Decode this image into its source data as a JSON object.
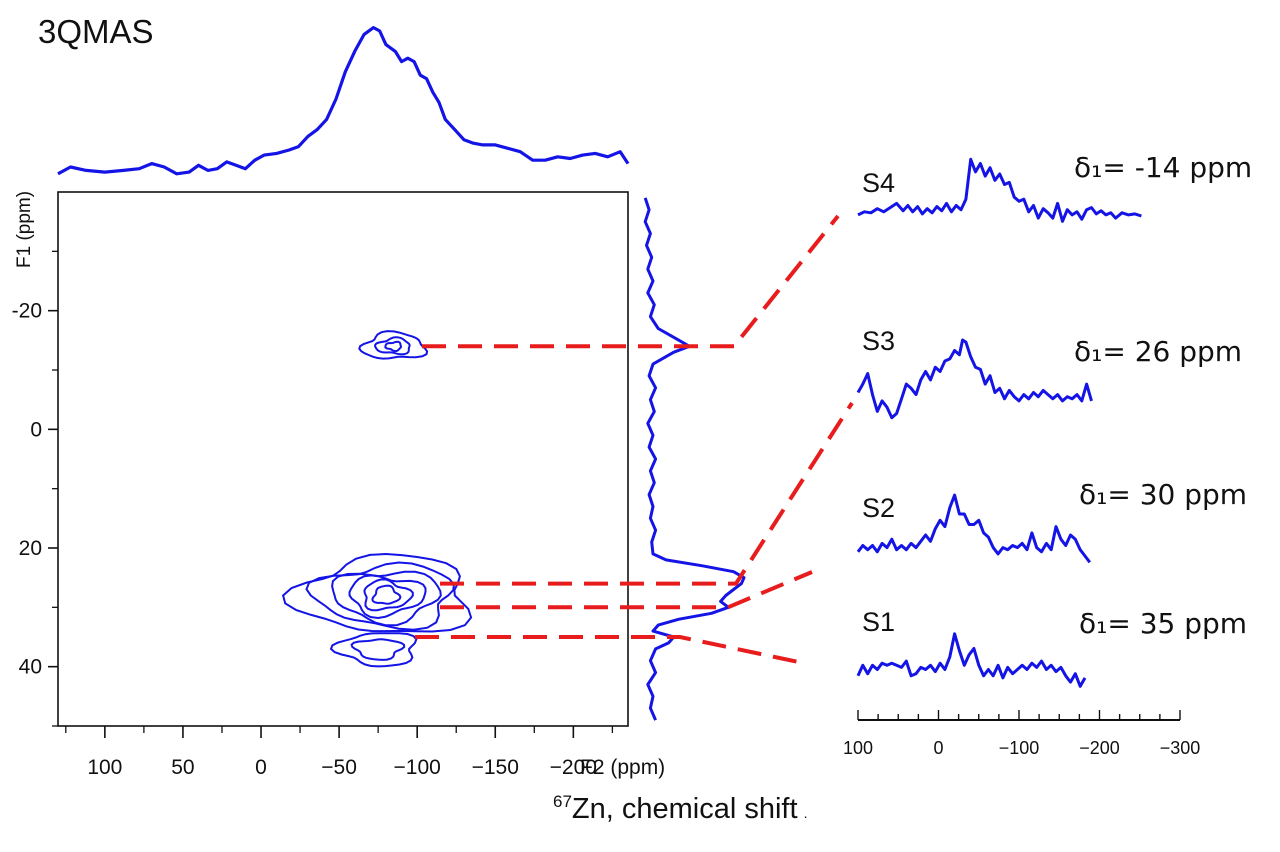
{
  "title": "3QMAS",
  "chart_data": {
    "type": "contour",
    "xlabel": "F2 (ppm)",
    "ylabel": "F1 (ppm)",
    "xlim": [
      130,
      -235
    ],
    "ylim": [
      -40,
      50
    ],
    "x_ticks": [
      100,
      50,
      0,
      -50,
      -100,
      -150,
      -200
    ],
    "x_tick_labels": [
      "100",
      "50",
      "0",
      "−50",
      "−100",
      "−150",
      "−200"
    ],
    "y_ticks": [
      -20,
      0,
      20,
      40
    ],
    "y_tick_labels": [
      "-20",
      "0",
      "20",
      "40"
    ],
    "footer_label_sup": "67",
    "footer_label_main": "Zn, chemical shift",
    "footer_mark": ".",
    "contours": [
      {
        "name": "site-A",
        "cx": -85,
        "cy": -14,
        "levels": [
          [
            20,
            2.2
          ],
          [
            11,
            1.3
          ],
          [
            5,
            0.7
          ]
        ]
      },
      {
        "name": "site-B",
        "cx": -80,
        "cy": 28,
        "levels": [
          [
            55,
            6.5
          ],
          [
            44,
            5.2
          ],
          [
            34,
            4.2
          ],
          [
            24,
            3.2
          ],
          [
            15,
            2.4
          ],
          [
            8,
            1.5
          ]
        ]
      },
      {
        "name": "site-C",
        "cx": -75,
        "cy": 37,
        "levels": [
          [
            25,
            2.8
          ],
          [
            15,
            1.7
          ]
        ]
      }
    ],
    "top_projection": [
      [
        130,
        -14
      ],
      [
        122,
        -10
      ],
      [
        112,
        -12
      ],
      [
        100,
        -13
      ],
      [
        88,
        -12
      ],
      [
        78,
        -11
      ],
      [
        70,
        -8
      ],
      [
        62,
        -10
      ],
      [
        54,
        -14
      ],
      [
        46,
        -13
      ],
      [
        40,
        -9
      ],
      [
        34,
        -12
      ],
      [
        28,
        -11
      ],
      [
        22,
        -7
      ],
      [
        16,
        -9
      ],
      [
        10,
        -11
      ],
      [
        4,
        -6
      ],
      [
        -2,
        -3
      ],
      [
        -10,
        -2
      ],
      [
        -18,
        0
      ],
      [
        -24,
        2
      ],
      [
        -30,
        8
      ],
      [
        -36,
        12
      ],
      [
        -42,
        18
      ],
      [
        -48,
        30
      ],
      [
        -54,
        46
      ],
      [
        -60,
        58
      ],
      [
        -66,
        68
      ],
      [
        -72,
        72
      ],
      [
        -76,
        70
      ],
      [
        -80,
        62
      ],
      [
        -86,
        58
      ],
      [
        -90,
        52
      ],
      [
        -94,
        54
      ],
      [
        -98,
        52
      ],
      [
        -102,
        44
      ],
      [
        -106,
        42
      ],
      [
        -110,
        34
      ],
      [
        -114,
        28
      ],
      [
        -118,
        18
      ],
      [
        -124,
        12
      ],
      [
        -130,
        6
      ],
      [
        -136,
        4
      ],
      [
        -142,
        3
      ],
      [
        -150,
        3
      ],
      [
        -158,
        1
      ],
      [
        -166,
        -1
      ],
      [
        -174,
        -6
      ],
      [
        -182,
        -6
      ],
      [
        -190,
        -4
      ],
      [
        -198,
        -5
      ],
      [
        -206,
        -3
      ],
      [
        -214,
        -2
      ],
      [
        -222,
        -4
      ],
      [
        -230,
        -1
      ],
      [
        -235,
        -8
      ]
    ],
    "side_projection": [
      [
        -39,
        4
      ],
      [
        -37,
        7
      ],
      [
        -35,
        4
      ],
      [
        -33,
        8
      ],
      [
        -31,
        5
      ],
      [
        -29,
        9
      ],
      [
        -27,
        6
      ],
      [
        -25,
        10
      ],
      [
        -23,
        6
      ],
      [
        -21,
        11
      ],
      [
        -19,
        8
      ],
      [
        -17,
        14
      ],
      [
        -15,
        30
      ],
      [
        -14,
        38
      ],
      [
        -13,
        26
      ],
      [
        -11,
        10
      ],
      [
        -9,
        7
      ],
      [
        -7,
        12
      ],
      [
        -5,
        8
      ],
      [
        -3,
        11
      ],
      [
        -1,
        6
      ],
      [
        1,
        10
      ],
      [
        3,
        7
      ],
      [
        5,
        12
      ],
      [
        7,
        8
      ],
      [
        9,
        11
      ],
      [
        11,
        7
      ],
      [
        13,
        10
      ],
      [
        15,
        8
      ],
      [
        17,
        12
      ],
      [
        19,
        9
      ],
      [
        21,
        10
      ],
      [
        22,
        20
      ],
      [
        23,
        48
      ],
      [
        24,
        72
      ],
      [
        25,
        80
      ],
      [
        26,
        78
      ],
      [
        27,
        72
      ],
      [
        28,
        66
      ],
      [
        29,
        62
      ],
      [
        30,
        68
      ],
      [
        31,
        55
      ],
      [
        32,
        30
      ],
      [
        33,
        14
      ],
      [
        34,
        10
      ],
      [
        35,
        26
      ],
      [
        36,
        22
      ],
      [
        37,
        12
      ],
      [
        39,
        8
      ],
      [
        41,
        12
      ],
      [
        43,
        6
      ],
      [
        45,
        10
      ],
      [
        47,
        8
      ],
      [
        49,
        12
      ]
    ],
    "slices": [
      {
        "label": "S4",
        "shift": "δ₁= -14 ppm",
        "f1": -14,
        "data": [
          [
            100,
            1
          ],
          [
            92,
            4
          ],
          [
            84,
            3
          ],
          [
            76,
            7
          ],
          [
            68,
            4
          ],
          [
            60,
            8
          ],
          [
            52,
            12
          ],
          [
            44,
            5
          ],
          [
            38,
            10
          ],
          [
            32,
            4
          ],
          [
            26,
            9
          ],
          [
            20,
            2
          ],
          [
            14,
            7
          ],
          [
            8,
            3
          ],
          [
            2,
            9
          ],
          [
            -4,
            5
          ],
          [
            -10,
            12
          ],
          [
            -16,
            4
          ],
          [
            -22,
            10
          ],
          [
            -28,
            6
          ],
          [
            -34,
            16
          ],
          [
            -40,
            54
          ],
          [
            -46,
            42
          ],
          [
            -52,
            50
          ],
          [
            -58,
            38
          ],
          [
            -64,
            46
          ],
          [
            -70,
            34
          ],
          [
            -76,
            40
          ],
          [
            -82,
            30
          ],
          [
            -88,
            32
          ],
          [
            -94,
            18
          ],
          [
            -100,
            14
          ],
          [
            -106,
            16
          ],
          [
            -112,
            4
          ],
          [
            -118,
            10
          ],
          [
            -124,
            -2
          ],
          [
            -130,
            7
          ],
          [
            -136,
            3
          ],
          [
            -142,
            -2
          ],
          [
            -148,
            12
          ],
          [
            -154,
            -5
          ],
          [
            -160,
            6
          ],
          [
            -166,
            1
          ],
          [
            -172,
            4
          ],
          [
            -178,
            -3
          ],
          [
            -184,
            6
          ],
          [
            -190,
            8
          ],
          [
            -196,
            2
          ],
          [
            -202,
            5
          ],
          [
            -208,
            1
          ],
          [
            -214,
            3
          ],
          [
            -220,
            -2
          ],
          [
            -228,
            3
          ],
          [
            -236,
            1
          ],
          [
            -244,
            2
          ],
          [
            -252,
            0
          ]
        ]
      },
      {
        "label": "S3",
        "shift": "δ₁= 26 ppm",
        "f1": 26,
        "data": [
          [
            100,
            10
          ],
          [
            94,
            18
          ],
          [
            88,
            28
          ],
          [
            82,
            8
          ],
          [
            76,
            -8
          ],
          [
            70,
            2
          ],
          [
            64,
            -4
          ],
          [
            58,
            -14
          ],
          [
            52,
            -10
          ],
          [
            46,
            4
          ],
          [
            40,
            18
          ],
          [
            34,
            14
          ],
          [
            28,
            8
          ],
          [
            22,
            22
          ],
          [
            16,
            30
          ],
          [
            10,
            22
          ],
          [
            4,
            34
          ],
          [
            -2,
            30
          ],
          [
            -8,
            40
          ],
          [
            -14,
            42
          ],
          [
            -20,
            50
          ],
          [
            -26,
            46
          ],
          [
            -30,
            60
          ],
          [
            -34,
            58
          ],
          [
            -40,
            44
          ],
          [
            -46,
            34
          ],
          [
            -52,
            32
          ],
          [
            -58,
            18
          ],
          [
            -64,
            26
          ],
          [
            -70,
            10
          ],
          [
            -76,
            14
          ],
          [
            -82,
            4
          ],
          [
            -88,
            12
          ],
          [
            -94,
            6
          ],
          [
            -100,
            2
          ],
          [
            -106,
            8
          ],
          [
            -112,
            4
          ],
          [
            -118,
            10
          ],
          [
            -124,
            6
          ],
          [
            -130,
            12
          ],
          [
            -136,
            8
          ],
          [
            -142,
            4
          ],
          [
            -148,
            8
          ],
          [
            -154,
            2
          ],
          [
            -160,
            6
          ],
          [
            -166,
            4
          ],
          [
            -172,
            8
          ],
          [
            -178,
            2
          ],
          [
            -184,
            18
          ],
          [
            -190,
            2
          ]
        ]
      },
      {
        "label": "S2",
        "shift": "δ₁= 30 ppm",
        "f1": 30,
        "data": [
          [
            100,
            4
          ],
          [
            94,
            10
          ],
          [
            88,
            6
          ],
          [
            82,
            10
          ],
          [
            76,
            4
          ],
          [
            70,
            12
          ],
          [
            64,
            8
          ],
          [
            58,
            16
          ],
          [
            52,
            6
          ],
          [
            46,
            10
          ],
          [
            40,
            6
          ],
          [
            34,
            12
          ],
          [
            28,
            8
          ],
          [
            22,
            14
          ],
          [
            16,
            20
          ],
          [
            10,
            14
          ],
          [
            4,
            26
          ],
          [
            -2,
            34
          ],
          [
            -8,
            28
          ],
          [
            -14,
            46
          ],
          [
            -20,
            58
          ],
          [
            -26,
            40
          ],
          [
            -32,
            40
          ],
          [
            -38,
            30
          ],
          [
            -44,
            30
          ],
          [
            -50,
            34
          ],
          [
            -56,
            22
          ],
          [
            -62,
            18
          ],
          [
            -68,
            8
          ],
          [
            -74,
            2
          ],
          [
            -80,
            8
          ],
          [
            -86,
            6
          ],
          [
            -92,
            10
          ],
          [
            -98,
            8
          ],
          [
            -104,
            12
          ],
          [
            -110,
            6
          ],
          [
            -116,
            22
          ],
          [
            -122,
            8
          ],
          [
            -128,
            4
          ],
          [
            -134,
            12
          ],
          [
            -140,
            6
          ],
          [
            -146,
            28
          ],
          [
            -152,
            16
          ],
          [
            -158,
            10
          ],
          [
            -164,
            20
          ],
          [
            -170,
            16
          ],
          [
            -176,
            6
          ],
          [
            -182,
            0
          ],
          [
            -188,
            -6
          ]
        ]
      },
      {
        "label": "S1",
        "shift": "δ₁= 35 ppm",
        "f1": 35,
        "data": [
          [
            100,
            4
          ],
          [
            94,
            14
          ],
          [
            88,
            6
          ],
          [
            82,
            14
          ],
          [
            76,
            10
          ],
          [
            70,
            16
          ],
          [
            64,
            14
          ],
          [
            58,
            16
          ],
          [
            52,
            14
          ],
          [
            46,
            12
          ],
          [
            40,
            18
          ],
          [
            34,
            4
          ],
          [
            28,
            6
          ],
          [
            22,
            12
          ],
          [
            16,
            10
          ],
          [
            10,
            14
          ],
          [
            4,
            8
          ],
          [
            -2,
            16
          ],
          [
            -8,
            10
          ],
          [
            -14,
            22
          ],
          [
            -20,
            44
          ],
          [
            -26,
            28
          ],
          [
            -32,
            14
          ],
          [
            -38,
            24
          ],
          [
            -44,
            30
          ],
          [
            -50,
            14
          ],
          [
            -56,
            4
          ],
          [
            -62,
            10
          ],
          [
            -68,
            4
          ],
          [
            -74,
            14
          ],
          [
            -80,
            2
          ],
          [
            -86,
            12
          ],
          [
            -92,
            6
          ],
          [
            -98,
            10
          ],
          [
            -104,
            14
          ],
          [
            -110,
            10
          ],
          [
            -116,
            16
          ],
          [
            -122,
            12
          ],
          [
            -128,
            18
          ],
          [
            -134,
            10
          ],
          [
            -140,
            14
          ],
          [
            -146,
            8
          ],
          [
            -152,
            12
          ],
          [
            -158,
            4
          ],
          [
            -164,
            -2
          ],
          [
            -170,
            6
          ],
          [
            -176,
            -6
          ],
          [
            -182,
            2
          ]
        ]
      }
    ],
    "slice_axis": {
      "xlim": [
        100,
        -300
      ],
      "ticks": [
        100,
        0,
        -100,
        -200,
        -300
      ],
      "tick_labels": [
        "100",
        "0",
        "−100",
        "−200",
        "−300"
      ]
    }
  },
  "colors": {
    "trace": "#1414e6",
    "guide": "#e81c1c",
    "frame": "#111111"
  }
}
